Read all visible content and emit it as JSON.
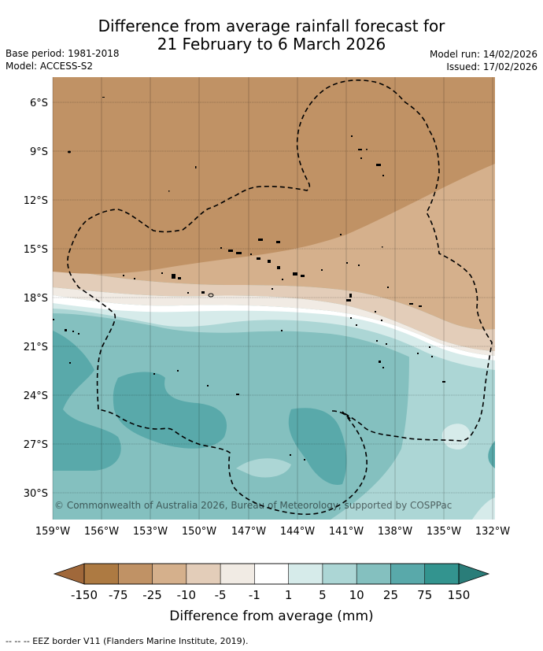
{
  "header": {
    "title_line1": "Difference from average rainfall forecast for",
    "title_line2": "21 February to 6 March 2026",
    "base_period": "Base period: 1981-2018",
    "model": "Model: ACCESS-S2",
    "model_run": "Model run: 14/02/2026",
    "issued": "Issued: 17/02/2026"
  },
  "map": {
    "lat_labels": [
      "6°S",
      "9°S",
      "12°S",
      "15°S",
      "18°S",
      "21°S",
      "24°S",
      "27°S",
      "30°S"
    ],
    "lon_labels": [
      "159°W",
      "156°W",
      "153°W",
      "150°W",
      "147°W",
      "144°W",
      "141°W",
      "138°W",
      "135°W",
      "132°W"
    ],
    "copyright": "© Commonwealth of Australia 2026, Bureau of Meteorology, supported by COSPPac"
  },
  "colorbar": {
    "tick_labels": [
      "-150",
      "-75",
      "-25",
      "-10",
      "-5",
      "-1",
      "1",
      "5",
      "10",
      "25",
      "75",
      "150"
    ],
    "colors": [
      "#ad7a42",
      "#c09265",
      "#d5b08c",
      "#e3cdb9",
      "#f1ebe4",
      "#ffffff",
      "#d6ebea",
      "#acd6d5",
      "#84c0bf",
      "#59a9aa",
      "#33948f"
    ],
    "under_color": "#a0683a",
    "over_color": "#2a7d79",
    "label": "Difference from average (mm)"
  },
  "footer": {
    "eez_note": "--  --  -- EEZ border V11 (Flanders Marine Institute, 2019)."
  }
}
